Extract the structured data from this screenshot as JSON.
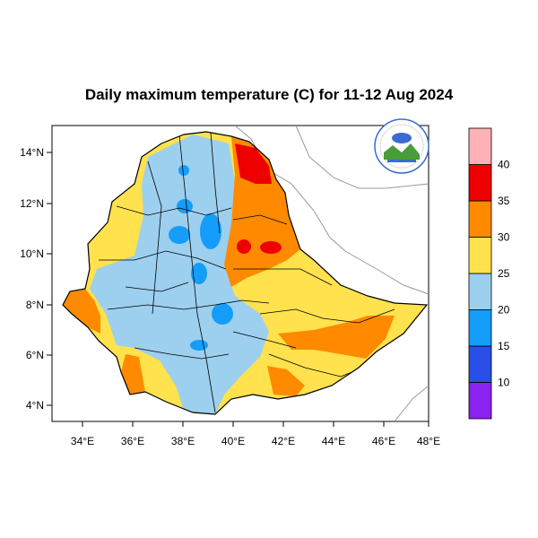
{
  "title": "Daily maximum temperature (C) for 11-12 Aug 2024",
  "x_ticks": [
    "34°E",
    "36°E",
    "38°E",
    "40°E",
    "42°E",
    "44°E",
    "46°E",
    "48°E"
  ],
  "y_ticks": [
    "14°N",
    "12°N",
    "10°N",
    "8°N",
    "6°N",
    "4°N"
  ],
  "colorbar": {
    "colors": [
      "#8a22f0",
      "#2a4ee8",
      "#149df9",
      "#9dcfef",
      "#ffe24d",
      "#ff8a00",
      "#ee0000",
      "#ffb1b8"
    ],
    "labels": [
      "10",
      "15",
      "20",
      "25",
      "30",
      "35",
      "40"
    ]
  },
  "logo": {
    "icon": "meteorology-agency-logo"
  }
}
